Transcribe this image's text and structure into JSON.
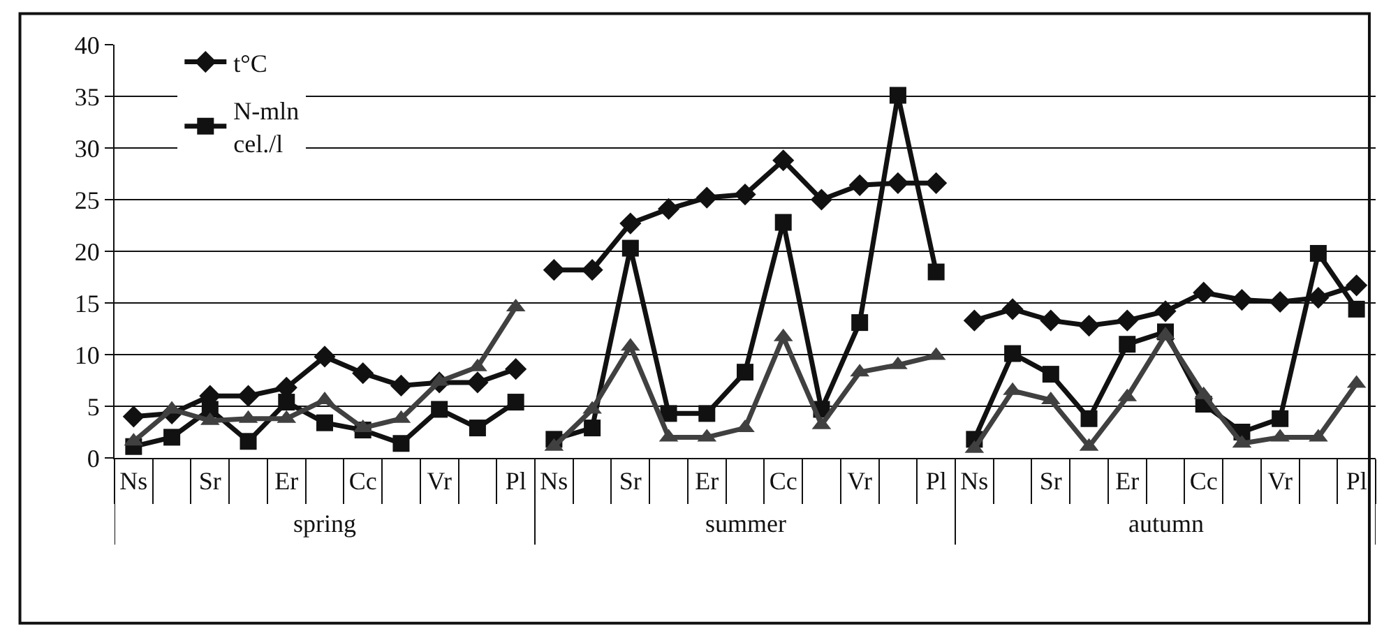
{
  "chart_data": {
    "type": "line",
    "categories": [
      "Ns",
      null,
      "Sr",
      null,
      "Er",
      null,
      "Cc",
      null,
      "Vr",
      null,
      "Pl",
      "Ns",
      null,
      "Sr",
      null,
      "Er",
      null,
      "Cc",
      null,
      "Vr",
      null,
      "Pl",
      "Ns",
      null,
      "Sr",
      null,
      "Er",
      null,
      "Cc",
      null,
      "Vr",
      null,
      "Pl"
    ],
    "series": [
      {
        "name": "t°C",
        "color": "#111111",
        "marker": "diamond",
        "values": [
          4.0,
          4.3,
          6.0,
          6.0,
          6.8,
          9.8,
          8.2,
          7.0,
          7.3,
          7.3,
          8.6,
          18.2,
          18.2,
          22.7,
          24.1,
          25.2,
          25.5,
          28.8,
          25.0,
          26.4,
          26.6,
          26.6,
          13.3,
          14.4,
          13.3,
          12.8,
          13.3,
          14.2,
          16.0,
          15.3,
          15.1,
          15.5,
          16.7
        ]
      },
      {
        "name": "N-mln\ncel./l",
        "color": "#111111",
        "marker": "square",
        "values": [
          1.1,
          2.0,
          4.7,
          1.6,
          5.4,
          3.4,
          2.7,
          1.4,
          4.7,
          2.9,
          5.4,
          1.8,
          2.9,
          20.3,
          4.3,
          4.3,
          8.3,
          22.8,
          4.7,
          13.1,
          35.1,
          18.0,
          1.8,
          10.1,
          8.1,
          3.8,
          11.0,
          12.2,
          5.2,
          2.5,
          3.8,
          19.8,
          14.4
        ]
      },
      {
        "color": "#404040",
        "marker": "triangle",
        "values": [
          1.6,
          4.7,
          3.6,
          3.8,
          3.8,
          5.6,
          2.9,
          3.8,
          7.4,
          8.8,
          14.6,
          1.1,
          4.7,
          10.8,
          2.0,
          2.0,
          2.9,
          11.7,
          3.2,
          8.3,
          9.0,
          9.9,
          0.9,
          6.5,
          5.6,
          1.1,
          5.9,
          11.9,
          6.1,
          1.4,
          2.0,
          2.0,
          7.2
        ]
      }
    ],
    "annotations": [
      "spring",
      "summer",
      "autumn"
    ],
    "ylim": [
      0,
      40
    ],
    "yticks": [
      0,
      5,
      10,
      15,
      20,
      25,
      30,
      35,
      40
    ],
    "grid": "y",
    "legend": "top left",
    "line_style": "solid"
  }
}
